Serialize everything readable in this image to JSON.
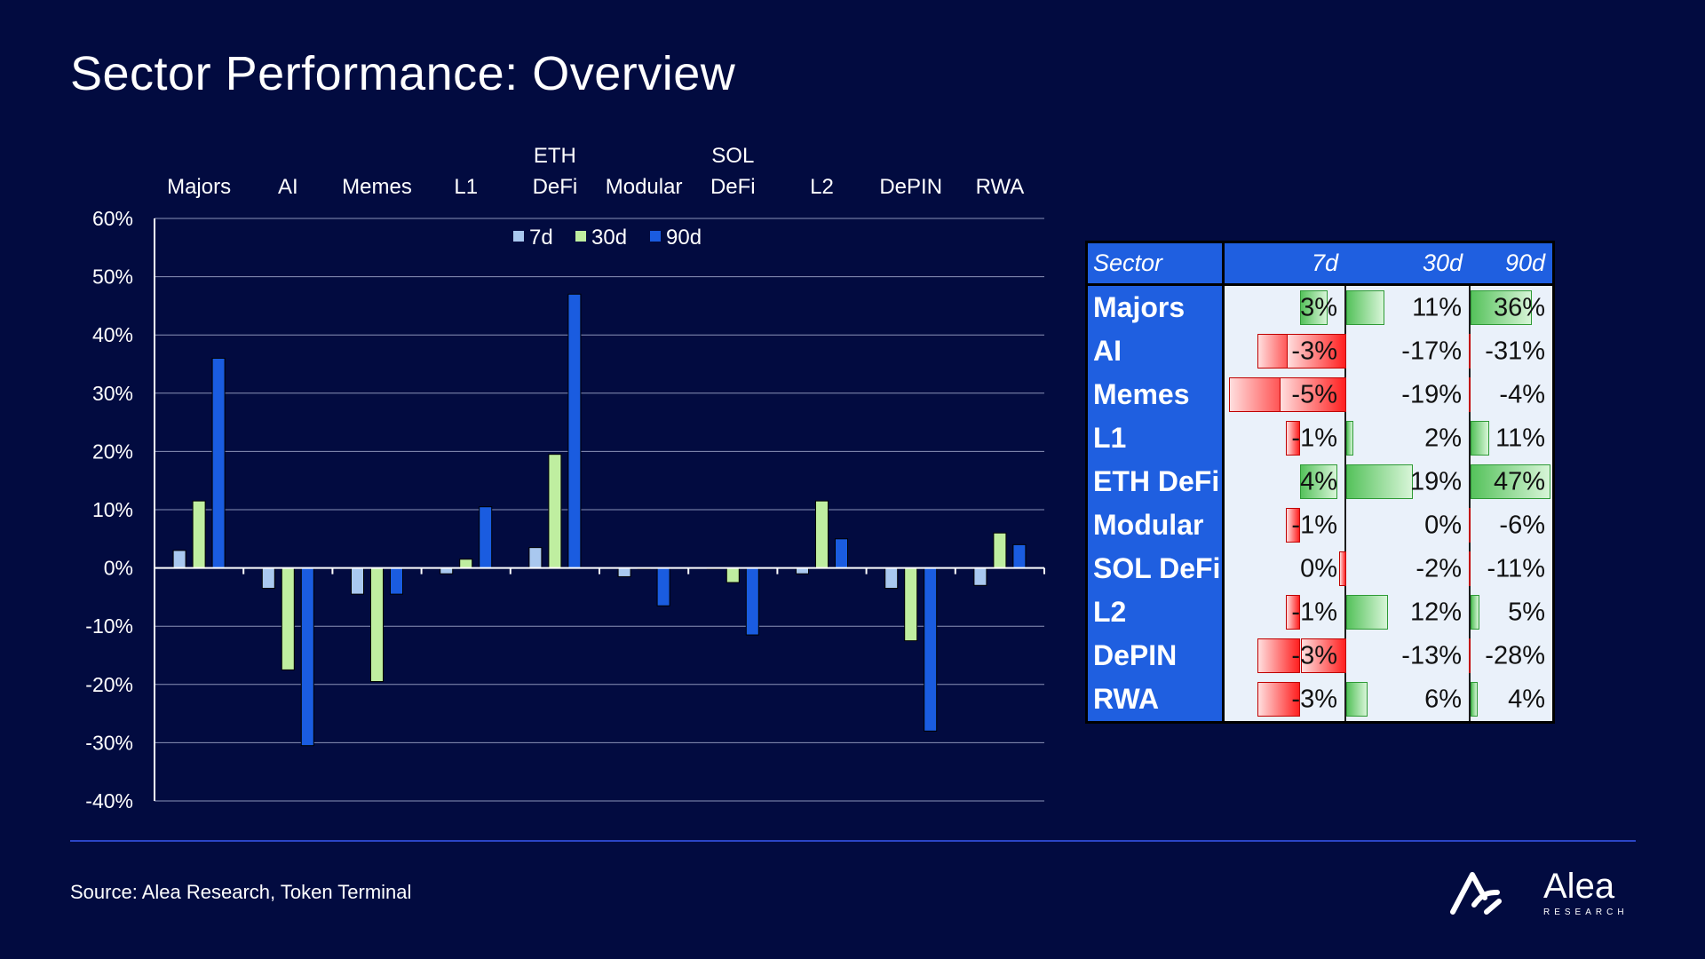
{
  "title": "Sector Performance: Overview",
  "source": "Source: Alea Research, Token Terminal",
  "logo": {
    "name": "Alea",
    "subtitle": "RESEARCH"
  },
  "colors": {
    "background": "#020b40",
    "c7d": "#a9c8ef",
    "c30d": "#bfeea0",
    "c90d": "#1a5ce0",
    "tableHeader": "#1f5fe0"
  },
  "chart_data": {
    "type": "bar",
    "categories": [
      [
        "Majors"
      ],
      [
        "AI"
      ],
      [
        "Memes"
      ],
      [
        "L1"
      ],
      [
        "ETH",
        "DeFi"
      ],
      [
        "Modular"
      ],
      [
        "SOL",
        "DeFi"
      ],
      [
        "L2"
      ],
      [
        "DePIN"
      ],
      [
        "RWA"
      ]
    ],
    "series": [
      {
        "name": "7d",
        "values": [
          3,
          -3.5,
          -4.5,
          -1,
          3.5,
          -1.5,
          0,
          -1,
          -3.5,
          -3
        ]
      },
      {
        "name": "30d",
        "values": [
          11.5,
          -17.5,
          -19.5,
          1.5,
          19.5,
          0,
          -2.5,
          11.5,
          -12.5,
          6
        ]
      },
      {
        "name": "90d",
        "values": [
          36,
          -30.5,
          -4.5,
          10.5,
          47,
          -6.5,
          -11.5,
          5,
          -28,
          4
        ]
      }
    ],
    "ylim": [
      -40,
      60
    ],
    "yticks": [
      60,
      50,
      40,
      30,
      20,
      10,
      0,
      -10,
      -20,
      -30,
      -40
    ],
    "ytick_labels": [
      "60%",
      "50%",
      "40%",
      "30%",
      "20%",
      "10%",
      "0%",
      "-10%",
      "-20%",
      "-30%",
      "-40%"
    ],
    "legend": [
      "7d",
      "30d",
      "90d"
    ],
    "legend_position": "top-center",
    "grid": true
  },
  "table": {
    "headers": [
      "Sector",
      "7d",
      "30d",
      "90d"
    ],
    "rows": [
      {
        "sector": "Majors",
        "v7": 3,
        "v30": 11,
        "v90": 36,
        "l7": "3%",
        "l30": "11%",
        "l90": "36%"
      },
      {
        "sector": "AI",
        "v7": -3,
        "v30": -17,
        "v90": -31,
        "l7": "-3%",
        "l30": "-17%",
        "l90": "-31%"
      },
      {
        "sector": "Memes",
        "v7": -5,
        "v30": -19,
        "v90": -4,
        "l7": "-5%",
        "l30": "-19%",
        "l90": "-4%"
      },
      {
        "sector": "L1",
        "v7": -1,
        "v30": 2,
        "v90": 11,
        "l7": "-1%",
        "l30": "2%",
        "l90": "11%"
      },
      {
        "sector": "ETH DeFi",
        "v7": 4,
        "v30": 19,
        "v90": 47,
        "l7": "4%",
        "l30": "19%",
        "l90": "47%"
      },
      {
        "sector": "Modular",
        "v7": -1,
        "v30": 0,
        "v90": -6,
        "l7": "-1%",
        "l30": "0%",
        "l90": "-6%"
      },
      {
        "sector": "SOL DeFi",
        "v7": 0,
        "v30": -2,
        "v90": -11,
        "l7": "0%",
        "l30": "-2%",
        "l90": "-11%"
      },
      {
        "sector": "L2",
        "v7": -1,
        "v30": 12,
        "v90": 5,
        "l7": "-1%",
        "l30": "12%",
        "l90": "5%"
      },
      {
        "sector": "DePIN",
        "v7": -3,
        "v30": -13,
        "v90": -28,
        "l7": "-3%",
        "l30": "-13%",
        "l90": "-28%"
      },
      {
        "sector": "RWA",
        "v7": -3,
        "v30": 6,
        "v90": 4,
        "l7": "-3%",
        "l30": "6%",
        "l90": "4%"
      }
    ]
  }
}
